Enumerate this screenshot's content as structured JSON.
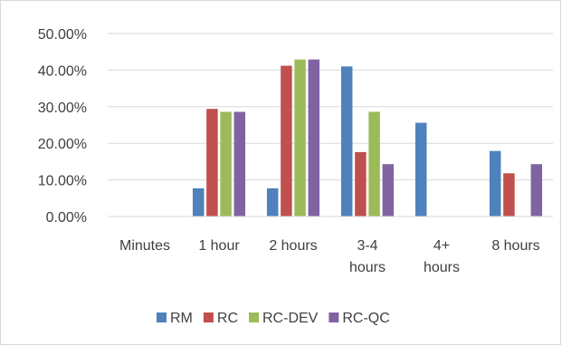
{
  "chart_data": {
    "type": "bar",
    "title": "",
    "xlabel": "",
    "ylabel": "",
    "ylim": [
      0,
      50
    ],
    "yticks": [
      0,
      10,
      20,
      30,
      40,
      50
    ],
    "ytick_labels": [
      "0.00%",
      "10.00%",
      "20.00%",
      "30.00%",
      "40.00%",
      "50.00%"
    ],
    "grid": true,
    "legend_position": "bottom",
    "categories": [
      "Minutes",
      "1 hour",
      "2 hours",
      "3-4 hours",
      "4+ hours",
      "8 hours"
    ],
    "category_lines": [
      [
        "Minutes"
      ],
      [
        "1 hour"
      ],
      [
        "2 hours"
      ],
      [
        "3-4",
        "hours"
      ],
      [
        "4+",
        "hours"
      ],
      [
        "8 hours"
      ]
    ],
    "series": [
      {
        "name": "RM",
        "color": "#4f81bd",
        "values": [
          0,
          7.7,
          7.7,
          41.0,
          25.6,
          17.9
        ]
      },
      {
        "name": "RC",
        "color": "#c0504d",
        "values": [
          0,
          29.4,
          41.2,
          17.6,
          0,
          11.8
        ]
      },
      {
        "name": "RC-DEV",
        "color": "#9bbb59",
        "values": [
          0,
          28.6,
          42.9,
          28.6,
          0,
          0
        ]
      },
      {
        "name": "RC-QC",
        "color": "#8064a2",
        "values": [
          0,
          28.6,
          42.9,
          14.3,
          0,
          14.3
        ]
      }
    ]
  }
}
